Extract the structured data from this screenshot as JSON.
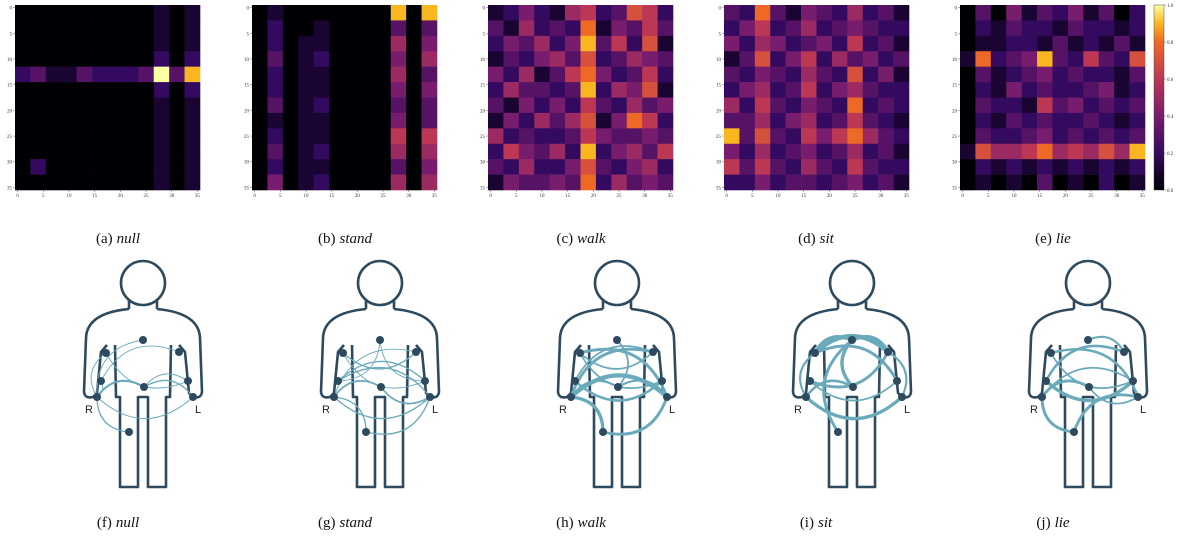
{
  "heatmap_axes": {
    "xlim": [
      -0.5,
      35.5
    ],
    "ylim": [
      -0.5,
      35.5
    ],
    "ticks": [
      0,
      5,
      10,
      15,
      20,
      25,
      30,
      35
    ]
  },
  "colorbar": {
    "lim": [
      0,
      1
    ],
    "ticks": [
      {
        "value": 0,
        "label": "0.0"
      },
      0.2,
      0.4,
      0.6,
      0.8,
      {
        "value": 1,
        "label": "1.0"
      }
    ]
  },
  "body_labels": {
    "right": "R",
    "left": "L"
  },
  "heatmaps": [
    {
      "label": "(a)",
      "activity": "null",
      "matrix": [
        [
          0,
          0,
          0,
          0,
          0,
          0,
          0,
          0,
          0,
          0.1,
          0,
          0.1
        ],
        [
          0,
          0,
          0,
          0,
          0,
          0,
          0,
          0,
          0,
          0.1,
          0,
          0.1
        ],
        [
          0,
          0,
          0,
          0,
          0,
          0,
          0,
          0,
          0,
          0.1,
          0,
          0.1
        ],
        [
          0,
          0,
          0,
          0,
          0,
          0,
          0,
          0,
          0,
          0.2,
          0,
          0.2
        ],
        [
          0.2,
          0.3,
          0.1,
          0.1,
          0.3,
          0.2,
          0.2,
          0.2,
          0.3,
          1,
          0.3,
          0.9
        ],
        [
          0,
          0,
          0,
          0,
          0,
          0,
          0,
          0,
          0,
          0.2,
          0,
          0.2
        ],
        [
          0,
          0,
          0,
          0,
          0,
          0,
          0,
          0,
          0,
          0.1,
          0,
          0.1
        ],
        [
          0,
          0,
          0,
          0,
          0,
          0,
          0,
          0,
          0,
          0.1,
          0,
          0.1
        ],
        [
          0,
          0,
          0,
          0,
          0,
          0,
          0,
          0,
          0,
          0.1,
          0,
          0.1
        ],
        [
          0,
          0,
          0,
          0,
          0,
          0,
          0,
          0,
          0,
          0.1,
          0,
          0.1
        ],
        [
          0,
          0.2,
          0,
          0,
          0,
          0,
          0,
          0,
          0,
          0.1,
          0,
          0.1
        ],
        [
          0,
          0,
          0,
          0,
          0,
          0,
          0,
          0,
          0,
          0.1,
          0,
          0.1
        ]
      ]
    },
    {
      "label": "(b)",
      "activity": "stand",
      "matrix": [
        [
          0,
          0.1,
          0,
          0,
          0,
          0,
          0,
          0,
          0,
          0.9,
          0,
          0.9
        ],
        [
          0,
          0.2,
          0,
          0,
          0.1,
          0,
          0,
          0,
          0,
          0.3,
          0,
          0.3
        ],
        [
          0,
          0.2,
          0,
          0.1,
          0.1,
          0,
          0,
          0,
          0,
          0.5,
          0,
          0.4
        ],
        [
          0,
          0.3,
          0,
          0.1,
          0.2,
          0,
          0,
          0,
          0,
          0.4,
          0,
          0.5
        ],
        [
          0,
          0.2,
          0,
          0.1,
          0.1,
          0,
          0,
          0,
          0,
          0.5,
          0,
          0.3
        ],
        [
          0,
          0.2,
          0,
          0.1,
          0.1,
          0,
          0,
          0,
          0,
          0.4,
          0,
          0.4
        ],
        [
          0,
          0.3,
          0,
          0.1,
          0.2,
          0,
          0,
          0,
          0,
          0.3,
          0,
          0.3
        ],
        [
          0,
          0.1,
          0,
          0.1,
          0.1,
          0,
          0,
          0,
          0,
          0.4,
          0,
          0.3
        ],
        [
          0,
          0.2,
          0,
          0.1,
          0.1,
          0,
          0,
          0,
          0,
          0.6,
          0,
          0.6
        ],
        [
          0,
          0.3,
          0,
          0.1,
          0.2,
          0,
          0,
          0,
          0,
          0.5,
          0,
          0.5
        ],
        [
          0,
          0.2,
          0,
          0.1,
          0.1,
          0,
          0,
          0,
          0,
          0.3,
          0,
          0.4
        ],
        [
          0,
          0.4,
          0,
          0.1,
          0.2,
          0,
          0,
          0,
          0,
          0.5,
          0,
          0.5
        ]
      ]
    },
    {
      "label": "(c)",
      "activity": "walk",
      "matrix": [
        [
          0.1,
          0.2,
          0.4,
          0.2,
          0.1,
          0.5,
          0.6,
          0.2,
          0.3,
          0.7,
          0.6,
          0.2
        ],
        [
          0.3,
          0.1,
          0.5,
          0.2,
          0.3,
          0.2,
          0.8,
          0.1,
          0.4,
          0.3,
          0.6,
          0.3
        ],
        [
          0.2,
          0.4,
          0.3,
          0.5,
          0.2,
          0.4,
          0.9,
          0.3,
          0.6,
          0.2,
          0.7,
          0.1
        ],
        [
          0.1,
          0.3,
          0.2,
          0.4,
          0.5,
          0.3,
          0.7,
          0.2,
          0.3,
          0.5,
          0.4,
          0.3
        ],
        [
          0.4,
          0.2,
          0.5,
          0.1,
          0.3,
          0.6,
          0.8,
          0.4,
          0.2,
          0.3,
          0.6,
          0.2
        ],
        [
          0.2,
          0.5,
          0.3,
          0.3,
          0.2,
          0.3,
          0.9,
          0.2,
          0.5,
          0.4,
          0.7,
          0.1
        ],
        [
          0.3,
          0.1,
          0.4,
          0.2,
          0.4,
          0.2,
          0.6,
          0.3,
          0.2,
          0.5,
          0.3,
          0.4
        ],
        [
          0.1,
          0.4,
          0.2,
          0.5,
          0.3,
          0.5,
          0.7,
          0.1,
          0.4,
          0.8,
          0.6,
          0.2
        ],
        [
          0.5,
          0.2,
          0.3,
          0.2,
          0.2,
          0.3,
          0.6,
          0.4,
          0.3,
          0.3,
          0.4,
          0.3
        ],
        [
          0.2,
          0.6,
          0.4,
          0.3,
          0.5,
          0.2,
          0.9,
          0.2,
          0.4,
          0.5,
          0.3,
          0.6
        ],
        [
          0.3,
          0.2,
          0.5,
          0.2,
          0.2,
          0.4,
          0.7,
          0.3,
          0.2,
          0.4,
          0.5,
          0.2
        ],
        [
          0.1,
          0.4,
          0.3,
          0.3,
          0.4,
          0.3,
          0.8,
          0.2,
          0.5,
          0.3,
          0.4,
          0.3
        ]
      ]
    },
    {
      "label": "(d)",
      "activity": "sit",
      "matrix": [
        [
          0.3,
          0.2,
          0.8,
          0.3,
          0.1,
          0.4,
          0.3,
          0.2,
          0.5,
          0.2,
          0.3,
          0.1
        ],
        [
          0.2,
          0.4,
          0.6,
          0.2,
          0.3,
          0.5,
          0.2,
          0.3,
          0.4,
          0.3,
          0.2,
          0.2
        ],
        [
          0.4,
          0.2,
          0.5,
          0.4,
          0.2,
          0.3,
          0.4,
          0.2,
          0.6,
          0.2,
          0.3,
          0.1
        ],
        [
          0.1,
          0.3,
          0.7,
          0.2,
          0.4,
          0.6,
          0.2,
          0.5,
          0.3,
          0.4,
          0.2,
          0.3
        ],
        [
          0.3,
          0.2,
          0.4,
          0.3,
          0.2,
          0.5,
          0.3,
          0.2,
          0.7,
          0.2,
          0.4,
          0.1
        ],
        [
          0.2,
          0.4,
          0.5,
          0.2,
          0.3,
          0.6,
          0.2,
          0.4,
          0.5,
          0.3,
          0.2,
          0.2
        ],
        [
          0.5,
          0.2,
          0.6,
          0.3,
          0.2,
          0.4,
          0.3,
          0.2,
          0.8,
          0.2,
          0.3,
          0.2
        ],
        [
          0.3,
          0.3,
          0.5,
          0.2,
          0.4,
          0.5,
          0.2,
          0.3,
          0.6,
          0.3,
          0.2,
          0.1
        ],
        [
          0.9,
          0.3,
          0.7,
          0.3,
          0.2,
          0.6,
          0.4,
          0.6,
          0.8,
          0.5,
          0.3,
          0.2
        ],
        [
          0.4,
          0.2,
          0.5,
          0.2,
          0.3,
          0.4,
          0.2,
          0.3,
          0.5,
          0.2,
          0.3,
          0.1
        ],
        [
          0.6,
          0.3,
          0.6,
          0.3,
          0.2,
          0.5,
          0.3,
          0.2,
          0.6,
          0.3,
          0.2,
          0.2
        ],
        [
          0.2,
          0.2,
          0.4,
          0.2,
          0.3,
          0.3,
          0.2,
          0.3,
          0.4,
          0.2,
          0.3,
          0.1
        ]
      ]
    },
    {
      "label": "(e)",
      "activity": "lie",
      "matrix": [
        [
          0,
          0.3,
          0,
          0.4,
          0.1,
          0.3,
          0.2,
          0.4,
          0.1,
          0.3,
          0,
          0.2
        ],
        [
          0,
          0.2,
          0.1,
          0.3,
          0.2,
          0.2,
          0.1,
          0.3,
          0.2,
          0.2,
          0.1,
          0.2
        ],
        [
          0,
          0.1,
          0.1,
          0.2,
          0.2,
          0.1,
          0.3,
          0.1,
          0.2,
          0.1,
          0.3,
          0.1
        ],
        [
          0.1,
          0.8,
          0.2,
          0.3,
          0.4,
          0.9,
          0.3,
          0.2,
          0.6,
          0.3,
          0.2,
          0.7
        ],
        [
          0,
          0.3,
          0.1,
          0.2,
          0.3,
          0.4,
          0.2,
          0.3,
          0.2,
          0.2,
          0.1,
          0.3
        ],
        [
          0,
          0.2,
          0.1,
          0.4,
          0.2,
          0.3,
          0.2,
          0.2,
          0.3,
          0.4,
          0.1,
          0.2
        ],
        [
          0,
          0.3,
          0.2,
          0.2,
          0.1,
          0.6,
          0.3,
          0.4,
          0.2,
          0.3,
          0.2,
          0.3
        ],
        [
          0,
          0.2,
          0.1,
          0.3,
          0.2,
          0.3,
          0.2,
          0.2,
          0.3,
          0.2,
          0.1,
          0.2
        ],
        [
          0,
          0.3,
          0.2,
          0.2,
          0.3,
          0.4,
          0.2,
          0.3,
          0.2,
          0.3,
          0.2,
          0.3
        ],
        [
          0.1,
          0.7,
          0.5,
          0.5,
          0.6,
          0.8,
          0.5,
          0.6,
          0.5,
          0.7,
          0.5,
          0.9
        ],
        [
          0,
          0.2,
          0.1,
          0.2,
          0.1,
          0.2,
          0.1,
          0.2,
          0.1,
          0.2,
          0.1,
          0.2
        ],
        [
          0,
          0.1,
          0,
          0.1,
          0,
          0.3,
          0,
          0.1,
          0,
          0.2,
          0,
          0.1
        ]
      ]
    }
  ],
  "bodies": [
    {
      "label": "(f)",
      "activity": "null",
      "edges": [
        [
          3,
          4,
          0.4
        ],
        [
          3,
          2,
          0.1
        ],
        [
          3,
          1,
          0.1
        ],
        [
          3,
          8,
          0.2
        ],
        [
          4,
          7,
          0.2
        ],
        [
          1,
          6,
          0.1
        ],
        [
          2,
          5,
          0.1
        ],
        [
          0,
          3,
          0.1
        ],
        [
          4,
          6,
          0.1
        ],
        [
          3,
          7,
          0.1
        ]
      ]
    },
    {
      "label": "(g)",
      "activity": "stand",
      "edges": [
        [
          3,
          4,
          0.3
        ],
        [
          3,
          7,
          0.2
        ],
        [
          2,
          6,
          0.2
        ],
        [
          1,
          5,
          0.2
        ],
        [
          3,
          8,
          0.2
        ],
        [
          4,
          7,
          0.3
        ],
        [
          2,
          7,
          0.2
        ],
        [
          1,
          6,
          0.1
        ],
        [
          0,
          2,
          0.1
        ],
        [
          8,
          7,
          0.2
        ],
        [
          3,
          5,
          0.1
        ],
        [
          0,
          6,
          0.1
        ]
      ]
    },
    {
      "label": "(h)",
      "activity": "walk",
      "edges": [
        [
          3,
          7,
          0.9
        ],
        [
          2,
          6,
          0.5
        ],
        [
          1,
          7,
          0.6
        ],
        [
          5,
          3,
          0.6
        ],
        [
          3,
          8,
          0.7
        ],
        [
          8,
          7,
          0.6
        ],
        [
          0,
          4,
          0.3
        ],
        [
          4,
          3,
          0.4
        ],
        [
          4,
          7,
          0.4
        ],
        [
          1,
          5,
          0.3
        ],
        [
          2,
          5,
          0.3
        ],
        [
          1,
          6,
          0.3
        ]
      ]
    },
    {
      "label": "(i)",
      "activity": "sit",
      "edges": [
        [
          1,
          5,
          0.9
        ],
        [
          0,
          1,
          0.8
        ],
        [
          0,
          5,
          0.8
        ],
        [
          0,
          4,
          0.7
        ],
        [
          1,
          6,
          0.6
        ],
        [
          2,
          5,
          0.6
        ],
        [
          3,
          4,
          0.5
        ],
        [
          3,
          7,
          0.7
        ],
        [
          8,
          0,
          0.6
        ],
        [
          1,
          3,
          0.4
        ],
        [
          5,
          7,
          0.4
        ],
        [
          2,
          6,
          0.3
        ]
      ]
    },
    {
      "label": "(j)",
      "activity": "lie",
      "edges": [
        [
          3,
          4,
          0.6
        ],
        [
          2,
          6,
          0.7
        ],
        [
          1,
          7,
          0.5
        ],
        [
          3,
          8,
          0.6
        ],
        [
          8,
          7,
          0.6
        ],
        [
          5,
          2,
          0.5
        ],
        [
          0,
          5,
          0.4
        ],
        [
          1,
          6,
          0.3
        ],
        [
          3,
          6,
          0.3
        ],
        [
          4,
          7,
          0.3
        ]
      ]
    }
  ]
}
